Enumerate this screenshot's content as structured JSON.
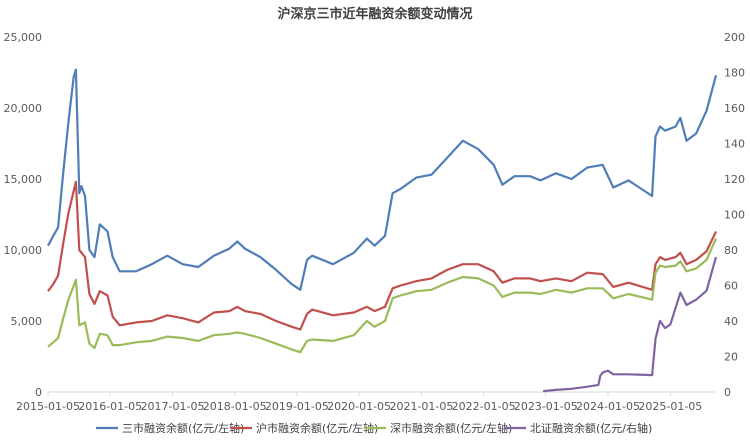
{
  "chart_data": {
    "type": "line",
    "title": "沪深京三市近年融资余额变动情况",
    "x_ticks": [
      "2015-01-05",
      "2016-01-05",
      "2017-01-05",
      "2018-01-05",
      "2019-01-05",
      "2020-01-05",
      "2021-01-05",
      "2022-01-05",
      "2023-01-05",
      "2024-01-05",
      "2025-01-05"
    ],
    "y_left": {
      "ticks": [
        "0",
        "5,000",
        "10,000",
        "15,000",
        "20,000",
        "25,000"
      ],
      "ylim": [
        0,
        25000
      ]
    },
    "y_right": {
      "ticks": [
        "0",
        "20",
        "40",
        "60",
        "80",
        "100",
        "120",
        "140",
        "160",
        "180",
        "200"
      ],
      "ylim": [
        0,
        200
      ]
    },
    "x_range": [
      "2015-01-05",
      "2025-09-30"
    ],
    "grid": false,
    "legend_position": "bottom",
    "series": [
      {
        "name": "三市融资余额(亿元/左轴)",
        "axis": "left",
        "color": "#4F7DB8",
        "points": [
          [
            "2015-01-05",
            10300
          ],
          [
            "2015-02-05",
            11000
          ],
          [
            "2015-03-05",
            11600
          ],
          [
            "2015-04-05",
            15500
          ],
          [
            "2015-05-05",
            19000
          ],
          [
            "2015-06-05",
            22200
          ],
          [
            "2015-06-18",
            22700
          ],
          [
            "2015-07-08",
            14000
          ],
          [
            "2015-07-20",
            14500
          ],
          [
            "2015-08-10",
            13800
          ],
          [
            "2015-09-05",
            10000
          ],
          [
            "2015-10-05",
            9500
          ],
          [
            "2015-11-05",
            11800
          ],
          [
            "2015-12-20",
            11300
          ],
          [
            "2016-01-20",
            9500
          ],
          [
            "2016-03-01",
            8500
          ],
          [
            "2016-06-05",
            8500
          ],
          [
            "2016-09-05",
            9000
          ],
          [
            "2016-12-05",
            9600
          ],
          [
            "2017-03-05",
            9000
          ],
          [
            "2017-06-05",
            8800
          ],
          [
            "2017-09-05",
            9600
          ],
          [
            "2017-12-05",
            10100
          ],
          [
            "2018-01-20",
            10600
          ],
          [
            "2018-03-05",
            10100
          ],
          [
            "2018-06-05",
            9500
          ],
          [
            "2018-09-05",
            8600
          ],
          [
            "2018-12-05",
            7600
          ],
          [
            "2019-01-25",
            7200
          ],
          [
            "2019-03-05",
            9300
          ],
          [
            "2019-04-05",
            9600
          ],
          [
            "2019-08-05",
            9000
          ],
          [
            "2019-12-05",
            9800
          ],
          [
            "2020-02-20",
            10800
          ],
          [
            "2020-04-05",
            10300
          ],
          [
            "2020-06-05",
            11000
          ],
          [
            "2020-07-20",
            14000
          ],
          [
            "2020-09-05",
            14300
          ],
          [
            "2020-12-05",
            15100
          ],
          [
            "2021-03-05",
            15300
          ],
          [
            "2021-06-05",
            16500
          ],
          [
            "2021-09-05",
            17700
          ],
          [
            "2021-12-05",
            17100
          ],
          [
            "2022-03-05",
            16000
          ],
          [
            "2022-04-25",
            14600
          ],
          [
            "2022-07-05",
            15200
          ],
          [
            "2022-10-05",
            15200
          ],
          [
            "2022-12-05",
            14900
          ],
          [
            "2023-03-05",
            15400
          ],
          [
            "2023-06-05",
            15000
          ],
          [
            "2023-09-05",
            15800
          ],
          [
            "2023-12-05",
            16000
          ],
          [
            "2024-02-05",
            14400
          ],
          [
            "2024-05-05",
            14900
          ],
          [
            "2024-09-20",
            13800
          ],
          [
            "2024-10-10",
            18000
          ],
          [
            "2024-11-05",
            18700
          ],
          [
            "2024-12-05",
            18400
          ],
          [
            "2025-02-05",
            18700
          ],
          [
            "2025-03-05",
            19300
          ],
          [
            "2025-04-10",
            17700
          ],
          [
            "2025-06-05",
            18200
          ],
          [
            "2025-08-05",
            19800
          ],
          [
            "2025-09-30",
            22300
          ]
        ]
      },
      {
        "name": "沪市融资余额(亿元/左轴)",
        "axis": "left",
        "color": "#C0504D",
        "points": [
          [
            "2015-01-05",
            7100
          ],
          [
            "2015-02-05",
            7600
          ],
          [
            "2015-03-05",
            8200
          ],
          [
            "2015-04-05",
            10500
          ],
          [
            "2015-05-05",
            12600
          ],
          [
            "2015-06-18",
            14800
          ],
          [
            "2015-07-08",
            10000
          ],
          [
            "2015-08-10",
            9500
          ],
          [
            "2015-09-05",
            6900
          ],
          [
            "2015-10-05",
            6200
          ],
          [
            "2015-11-05",
            7100
          ],
          [
            "2015-12-20",
            6800
          ],
          [
            "2016-01-20",
            5300
          ],
          [
            "2016-03-01",
            4700
          ],
          [
            "2016-06-05",
            4900
          ],
          [
            "2016-09-05",
            5000
          ],
          [
            "2016-12-05",
            5400
          ],
          [
            "2017-03-05",
            5200
          ],
          [
            "2017-06-05",
            4900
          ],
          [
            "2017-09-05",
            5600
          ],
          [
            "2017-12-05",
            5700
          ],
          [
            "2018-01-20",
            6000
          ],
          [
            "2018-03-05",
            5700
          ],
          [
            "2018-06-05",
            5500
          ],
          [
            "2018-09-05",
            5000
          ],
          [
            "2018-12-05",
            4600
          ],
          [
            "2019-01-25",
            4400
          ],
          [
            "2019-03-05",
            5500
          ],
          [
            "2019-04-05",
            5800
          ],
          [
            "2019-08-05",
            5400
          ],
          [
            "2019-12-05",
            5600
          ],
          [
            "2020-02-20",
            6000
          ],
          [
            "2020-04-05",
            5700
          ],
          [
            "2020-06-05",
            6000
          ],
          [
            "2020-07-20",
            7300
          ],
          [
            "2020-09-05",
            7500
          ],
          [
            "2020-12-05",
            7800
          ],
          [
            "2021-03-05",
            8000
          ],
          [
            "2021-06-05",
            8600
          ],
          [
            "2021-09-05",
            9000
          ],
          [
            "2021-12-05",
            9000
          ],
          [
            "2022-03-05",
            8500
          ],
          [
            "2022-04-25",
            7700
          ],
          [
            "2022-07-05",
            8000
          ],
          [
            "2022-10-05",
            8000
          ],
          [
            "2022-12-05",
            7800
          ],
          [
            "2023-03-05",
            8000
          ],
          [
            "2023-06-05",
            7800
          ],
          [
            "2023-09-05",
            8400
          ],
          [
            "2023-12-05",
            8300
          ],
          [
            "2024-02-05",
            7400
          ],
          [
            "2024-05-05",
            7700
          ],
          [
            "2024-09-20",
            7200
          ],
          [
            "2024-10-10",
            9000
          ],
          [
            "2024-11-05",
            9500
          ],
          [
            "2024-12-05",
            9300
          ],
          [
            "2025-02-05",
            9500
          ],
          [
            "2025-03-05",
            9800
          ],
          [
            "2025-04-10",
            9000
          ],
          [
            "2025-06-05",
            9300
          ],
          [
            "2025-08-05",
            9900
          ],
          [
            "2025-09-30",
            11300
          ]
        ]
      },
      {
        "name": "深市融资余额(亿元/左轴)",
        "axis": "left",
        "color": "#9BBB59",
        "points": [
          [
            "2015-01-05",
            3200
          ],
          [
            "2015-02-05",
            3500
          ],
          [
            "2015-03-05",
            3800
          ],
          [
            "2015-04-05",
            5200
          ],
          [
            "2015-05-05",
            6500
          ],
          [
            "2015-06-18",
            7900
          ],
          [
            "2015-07-08",
            4700
          ],
          [
            "2015-08-10",
            4900
          ],
          [
            "2015-09-05",
            3400
          ],
          [
            "2015-10-05",
            3100
          ],
          [
            "2015-11-05",
            4100
          ],
          [
            "2015-12-20",
            4000
          ],
          [
            "2016-01-20",
            3300
          ],
          [
            "2016-03-01",
            3300
          ],
          [
            "2016-06-05",
            3500
          ],
          [
            "2016-09-05",
            3600
          ],
          [
            "2016-12-05",
            3900
          ],
          [
            "2017-03-05",
            3800
          ],
          [
            "2017-06-05",
            3600
          ],
          [
            "2017-09-05",
            4000
          ],
          [
            "2017-12-05",
            4100
          ],
          [
            "2018-01-20",
            4200
          ],
          [
            "2018-03-05",
            4100
          ],
          [
            "2018-06-05",
            3800
          ],
          [
            "2018-09-05",
            3400
          ],
          [
            "2018-12-05",
            3000
          ],
          [
            "2019-01-25",
            2800
          ],
          [
            "2019-03-05",
            3600
          ],
          [
            "2019-04-05",
            3700
          ],
          [
            "2019-08-05",
            3600
          ],
          [
            "2019-12-05",
            4000
          ],
          [
            "2020-02-20",
            5000
          ],
          [
            "2020-04-05",
            4600
          ],
          [
            "2020-06-05",
            5000
          ],
          [
            "2020-07-20",
            6600
          ],
          [
            "2020-09-05",
            6800
          ],
          [
            "2020-12-05",
            7100
          ],
          [
            "2021-03-05",
            7200
          ],
          [
            "2021-06-05",
            7700
          ],
          [
            "2021-09-05",
            8100
          ],
          [
            "2021-12-05",
            8000
          ],
          [
            "2022-03-05",
            7500
          ],
          [
            "2022-04-25",
            6700
          ],
          [
            "2022-07-05",
            7000
          ],
          [
            "2022-10-05",
            7000
          ],
          [
            "2022-12-05",
            6900
          ],
          [
            "2023-03-05",
            7200
          ],
          [
            "2023-06-05",
            7000
          ],
          [
            "2023-09-05",
            7300
          ],
          [
            "2023-12-05",
            7300
          ],
          [
            "2024-02-05",
            6600
          ],
          [
            "2024-05-05",
            6900
          ],
          [
            "2024-09-20",
            6500
          ],
          [
            "2024-10-10",
            8400
          ],
          [
            "2024-11-05",
            8900
          ],
          [
            "2024-12-05",
            8800
          ],
          [
            "2025-02-05",
            8900
          ],
          [
            "2025-03-05",
            9200
          ],
          [
            "2025-04-10",
            8500
          ],
          [
            "2025-06-05",
            8700
          ],
          [
            "2025-08-05",
            9300
          ],
          [
            "2025-09-30",
            10800
          ]
        ]
      },
      {
        "name": "北证融资余额(亿元/右轴)",
        "axis": "right",
        "color": "#8064A2",
        "points": [
          [
            "2022-12-20",
            0.5
          ],
          [
            "2023-03-05",
            1.2
          ],
          [
            "2023-06-05",
            1.8
          ],
          [
            "2023-09-05",
            3
          ],
          [
            "2023-11-10",
            4
          ],
          [
            "2023-11-20",
            9
          ],
          [
            "2023-12-05",
            11
          ],
          [
            "2024-01-05",
            12
          ],
          [
            "2024-02-05",
            10
          ],
          [
            "2024-05-05",
            10
          ],
          [
            "2024-09-20",
            9.5
          ],
          [
            "2024-10-10",
            30
          ],
          [
            "2024-11-05",
            40
          ],
          [
            "2024-12-05",
            36
          ],
          [
            "2025-01-05",
            38
          ],
          [
            "2025-02-20",
            52
          ],
          [
            "2025-03-05",
            56
          ],
          [
            "2025-04-10",
            49
          ],
          [
            "2025-06-05",
            52
          ],
          [
            "2025-08-05",
            57
          ],
          [
            "2025-09-30",
            76
          ]
        ]
      }
    ]
  }
}
